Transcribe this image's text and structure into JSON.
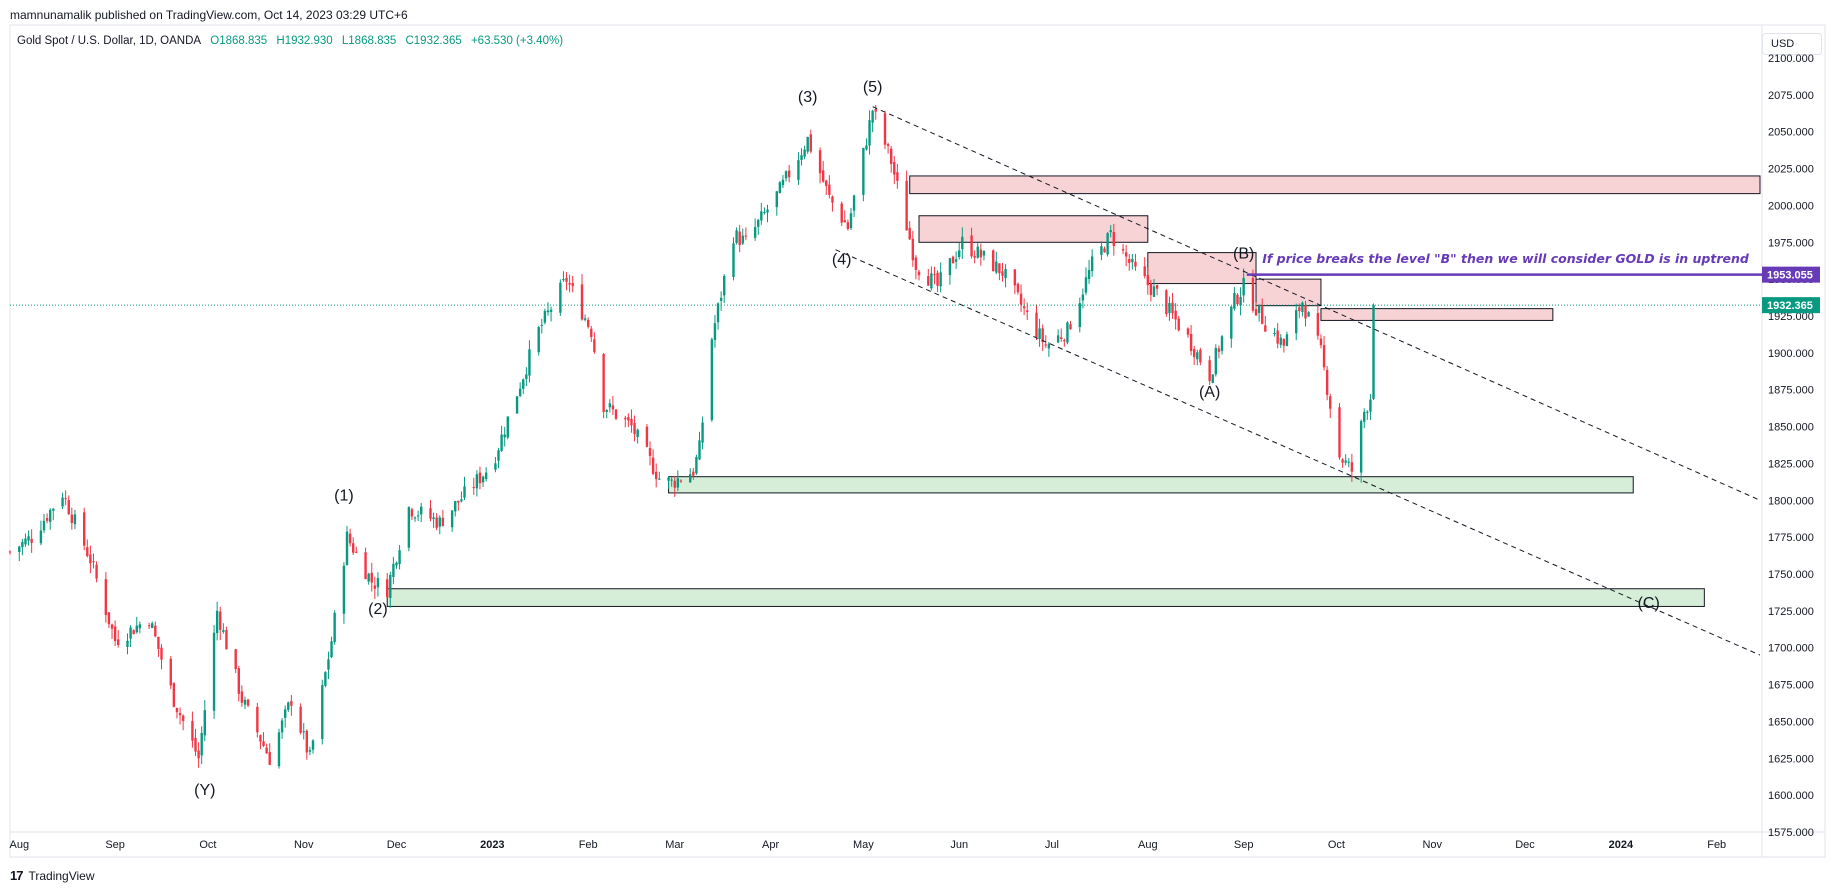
{
  "credit": "mamnunamalik published on TradingView.com, Oct 14, 2023 03:29 UTC+6",
  "legend": {
    "symbol": "Gold Spot / U.S. Dollar, 1D, OANDA",
    "open": "O1868.835",
    "high": "H1932.930",
    "low": "L1868.835",
    "close": "C1932.365",
    "change": "+63.530 (+3.40%)"
  },
  "currency_button": "USD",
  "footer": {
    "logo": "17",
    "brand": "TradingView"
  },
  "colors": {
    "up": "#089981",
    "down": "#f23645",
    "purple": "#673ab7",
    "supply_fill": "#f8d3d6",
    "demand_fill": "#d6eed8",
    "price_line": "#089981"
  },
  "chart_data": {
    "type": "candlestick",
    "instrument": "Gold Spot / U.S. Dollar",
    "timeframe": "1D",
    "ylim": [
      1575,
      2100
    ],
    "y_ticks": [
      1575,
      1600,
      1625,
      1650,
      1675,
      1700,
      1725,
      1750,
      1775,
      1800,
      1825,
      1850,
      1875,
      1900,
      1925,
      1950,
      1975,
      2000,
      2025,
      2050,
      2075,
      2100
    ],
    "x_range": [
      "2022-07-29",
      "2024-02-15"
    ],
    "x_ticks": [
      {
        "label": "Aug",
        "date": "2022-08-01"
      },
      {
        "label": "Sep",
        "date": "2022-09-01"
      },
      {
        "label": "Oct",
        "date": "2022-10-01"
      },
      {
        "label": "Nov",
        "date": "2022-11-01"
      },
      {
        "label": "Dec",
        "date": "2022-12-01"
      },
      {
        "label": "2023",
        "date": "2023-01-01"
      },
      {
        "label": "Feb",
        "date": "2023-02-01"
      },
      {
        "label": "Mar",
        "date": "2023-03-01"
      },
      {
        "label": "Apr",
        "date": "2023-04-01"
      },
      {
        "label": "May",
        "date": "2023-05-01"
      },
      {
        "label": "Jun",
        "date": "2023-06-01"
      },
      {
        "label": "Jul",
        "date": "2023-07-01"
      },
      {
        "label": "Aug",
        "date": "2023-08-01"
      },
      {
        "label": "Sep",
        "date": "2023-09-01"
      },
      {
        "label": "Oct",
        "date": "2023-10-01"
      },
      {
        "label": "Nov",
        "date": "2023-11-01"
      },
      {
        "label": "Dec",
        "date": "2023-12-01"
      },
      {
        "label": "2024",
        "date": "2024-01-01"
      },
      {
        "label": "Feb",
        "date": "2024-02-01"
      }
    ],
    "price_path": [
      {
        "date": "2022-07-29",
        "price": 1765
      },
      {
        "date": "2022-08-05",
        "price": 1775
      },
      {
        "date": "2022-08-15",
        "price": 1805
      },
      {
        "date": "2022-08-24",
        "price": 1760
      },
      {
        "date": "2022-09-01",
        "price": 1705
      },
      {
        "date": "2022-09-12",
        "price": 1720
      },
      {
        "date": "2022-09-20",
        "price": 1665
      },
      {
        "date": "2022-09-28",
        "price": 1625
      },
      {
        "date": "2022-10-04",
        "price": 1725
      },
      {
        "date": "2022-10-12",
        "price": 1665
      },
      {
        "date": "2022-10-21",
        "price": 1625
      },
      {
        "date": "2022-10-28",
        "price": 1665
      },
      {
        "date": "2022-11-03",
        "price": 1625
      },
      {
        "date": "2022-11-10",
        "price": 1705
      },
      {
        "date": "2022-11-15",
        "price": 1775
      },
      {
        "date": "2022-11-23",
        "price": 1745
      },
      {
        "date": "2022-11-28",
        "price": 1740
      },
      {
        "date": "2022-12-05",
        "price": 1795
      },
      {
        "date": "2022-12-15",
        "price": 1785
      },
      {
        "date": "2023-01-01",
        "price": 1825
      },
      {
        "date": "2023-01-16",
        "price": 1915
      },
      {
        "date": "2023-01-25",
        "price": 1950
      },
      {
        "date": "2023-02-02",
        "price": 1915
      },
      {
        "date": "2023-02-06",
        "price": 1865
      },
      {
        "date": "2023-02-15",
        "price": 1850
      },
      {
        "date": "2023-02-24",
        "price": 1815
      },
      {
        "date": "2023-02-28",
        "price": 1812
      },
      {
        "date": "2023-03-07",
        "price": 1820
      },
      {
        "date": "2023-03-09",
        "price": 1835
      },
      {
        "date": "2023-03-13",
        "price": 1910
      },
      {
        "date": "2023-03-20",
        "price": 1980
      },
      {
        "date": "2023-03-24",
        "price": 1975
      },
      {
        "date": "2023-04-04",
        "price": 2010
      },
      {
        "date": "2023-04-13",
        "price": 2045
      },
      {
        "date": "2023-04-20",
        "price": 2005
      },
      {
        "date": "2023-04-26",
        "price": 1985
      },
      {
        "date": "2023-05-04",
        "price": 2065
      },
      {
        "date": "2023-05-10",
        "price": 2030
      },
      {
        "date": "2023-05-18",
        "price": 1960
      },
      {
        "date": "2023-05-25",
        "price": 1945
      },
      {
        "date": "2023-06-02",
        "price": 1975
      },
      {
        "date": "2023-06-15",
        "price": 1955
      },
      {
        "date": "2023-06-23",
        "price": 1925
      },
      {
        "date": "2023-06-29",
        "price": 1905
      },
      {
        "date": "2023-07-06",
        "price": 1915
      },
      {
        "date": "2023-07-14",
        "price": 1960
      },
      {
        "date": "2023-07-20",
        "price": 1980
      },
      {
        "date": "2023-07-28",
        "price": 1955
      },
      {
        "date": "2023-08-04",
        "price": 1940
      },
      {
        "date": "2023-08-14",
        "price": 1910
      },
      {
        "date": "2023-08-21",
        "price": 1885
      },
      {
        "date": "2023-08-29",
        "price": 1935
      },
      {
        "date": "2023-09-01",
        "price": 1945
      },
      {
        "date": "2023-09-08",
        "price": 1920
      },
      {
        "date": "2023-09-14",
        "price": 1905
      },
      {
        "date": "2023-09-20",
        "price": 1935
      },
      {
        "date": "2023-09-26",
        "price": 1900
      },
      {
        "date": "2023-10-02",
        "price": 1830
      },
      {
        "date": "2023-10-06",
        "price": 1820
      },
      {
        "date": "2023-10-10",
        "price": 1860
      },
      {
        "date": "2023-10-12",
        "price": 1870
      },
      {
        "date": "2023-10-13",
        "price": 1932
      }
    ],
    "zones": [
      {
        "type": "supply",
        "start": "2023-05-16",
        "end": "2024-02-20",
        "top": 2020,
        "bottom": 2008
      },
      {
        "type": "supply",
        "start": "2023-05-19",
        "end": "2023-08-01",
        "top": 1993,
        "bottom": 1975
      },
      {
        "type": "supply",
        "start": "2023-08-01",
        "end": "2023-09-05",
        "top": 1968,
        "bottom": 1947
      },
      {
        "type": "supply",
        "start": "2023-09-05",
        "end": "2023-09-26",
        "top": 1950,
        "bottom": 1932
      },
      {
        "type": "supply",
        "start": "2023-09-26",
        "end": "2023-12-10",
        "top": 1930,
        "bottom": 1922
      },
      {
        "type": "demand",
        "start": "2023-02-27",
        "end": "2024-01-05",
        "top": 1816,
        "bottom": 1805
      },
      {
        "type": "demand",
        "start": "2022-11-28",
        "end": "2024-01-28",
        "top": 1740,
        "bottom": 1728
      }
    ],
    "trendlines": [
      {
        "start": {
          "date": "2023-05-04",
          "price": 2067
        },
        "end": {
          "date": "2024-02-15",
          "price": 1800
        }
      },
      {
        "start": {
          "date": "2023-04-22",
          "price": 1970
        },
        "end": {
          "date": "2024-02-15",
          "price": 1695
        }
      }
    ],
    "level_line": {
      "price": 1953.055,
      "start": "2023-09-02",
      "label": "1953.055",
      "color": "#673ab7"
    },
    "current_price": {
      "price": 1932.365,
      "label": "1932.365"
    },
    "note": "If price breaks the level \"B\" then we will consider GOLD is in uptrend",
    "wave_labels": [
      {
        "text": "(Y)",
        "date": "2022-09-30",
        "price": 1600
      },
      {
        "text": "(1)",
        "date": "2022-11-14",
        "price": 1800
      },
      {
        "text": "(2)",
        "date": "2022-11-25",
        "price": 1723
      },
      {
        "text": "(3)",
        "date": "2023-04-13",
        "price": 2070
      },
      {
        "text": "(4)",
        "date": "2023-04-24",
        "price": 1960
      },
      {
        "text": "(5)",
        "date": "2023-05-04",
        "price": 2077
      },
      {
        "text": "(A)",
        "date": "2023-08-21",
        "price": 1870
      },
      {
        "text": "(B)",
        "date": "2023-09-01",
        "price": 1964
      },
      {
        "text": "(C)",
        "date": "2024-01-10",
        "price": 1727
      }
    ]
  }
}
